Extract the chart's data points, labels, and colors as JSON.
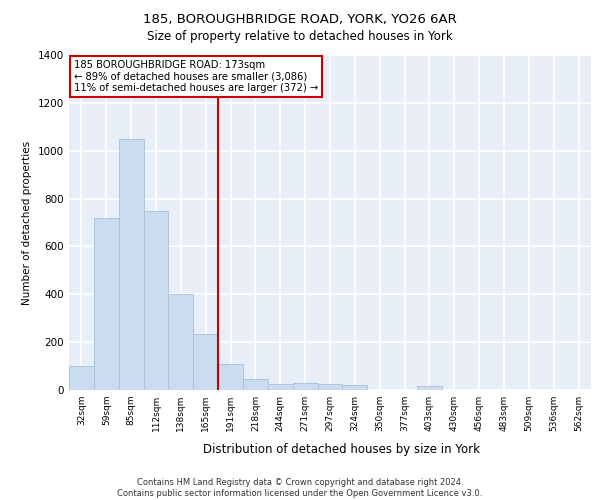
{
  "title_line1": "185, BOROUGHBRIDGE ROAD, YORK, YO26 6AR",
  "title_line2": "Size of property relative to detached houses in York",
  "xlabel": "Distribution of detached houses by size in York",
  "ylabel": "Number of detached properties",
  "footer_line1": "Contains HM Land Registry data © Crown copyright and database right 2024.",
  "footer_line2": "Contains public sector information licensed under the Open Government Licence v3.0.",
  "annotation_line1": "185 BOROUGHBRIDGE ROAD: 173sqm",
  "annotation_line2": "← 89% of detached houses are smaller (3,086)",
  "annotation_line3": "11% of semi-detached houses are larger (372) →",
  "categories": [
    "32sqm",
    "59sqm",
    "85sqm",
    "112sqm",
    "138sqm",
    "165sqm",
    "191sqm",
    "218sqm",
    "244sqm",
    "271sqm",
    "297sqm",
    "324sqm",
    "350sqm",
    "377sqm",
    "403sqm",
    "430sqm",
    "456sqm",
    "483sqm",
    "509sqm",
    "536sqm",
    "562sqm"
  ],
  "bar_values": [
    100,
    720,
    1050,
    750,
    400,
    235,
    110,
    45,
    25,
    30,
    25,
    20,
    0,
    0,
    15,
    0,
    0,
    0,
    0,
    0,
    0
  ],
  "bar_color": "#c9dcf0",
  "bar_edge_color": "#aabfd8",
  "vline_color": "#cc0000",
  "vline_bin": 5,
  "ylim": [
    0,
    1400
  ],
  "yticks": [
    0,
    200,
    400,
    600,
    800,
    1000,
    1200,
    1400
  ],
  "bg_color": "#e8eef8",
  "grid_color": "#ffffff",
  "annotation_box_edge_color": "#cc0000",
  "annotation_box_face_color": "#ffffff",
  "fig_width": 6.0,
  "fig_height": 5.0,
  "dpi": 100
}
